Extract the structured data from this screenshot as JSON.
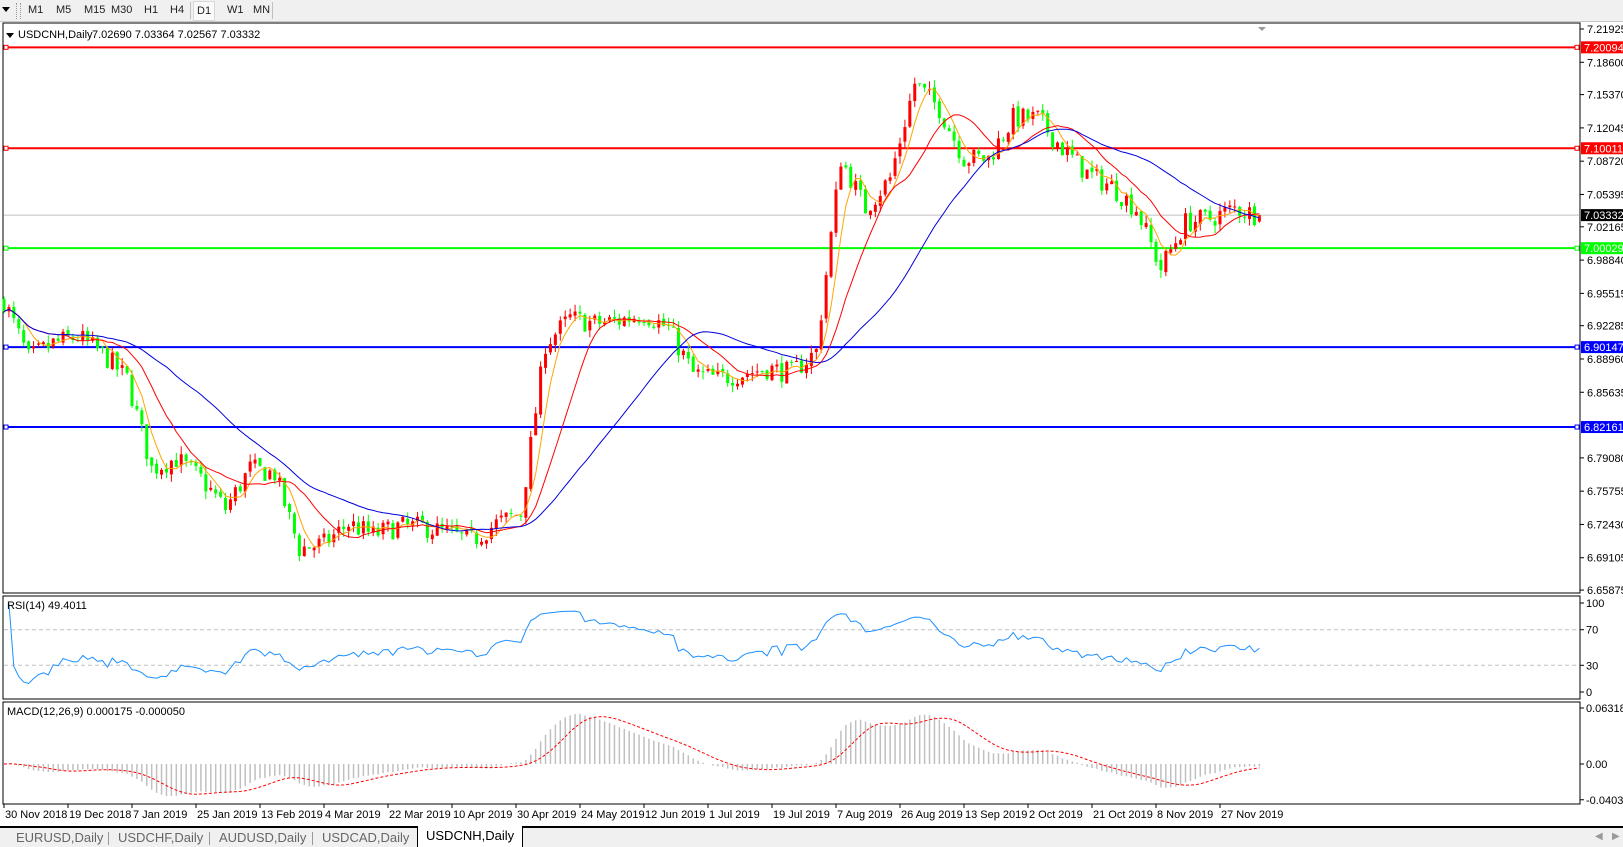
{
  "toolbar": {
    "timeframes": [
      "M1",
      "M5",
      "M15",
      "M30",
      "H1",
      "H4",
      "D1",
      "W1",
      "MN"
    ],
    "active": "D1"
  },
  "chart": {
    "symbol_label": "USDCNH,Daily",
    "ohlc_label": "7.02690 7.03364 7.02567 7.03332",
    "price_ticks": [
      "7.21925",
      "7.18600",
      "7.15370",
      "7.12045",
      "7.08720",
      "7.05395",
      "7.02165",
      "6.98840",
      "6.95515",
      "6.92285",
      "6.88960",
      "6.85635",
      "6.79080",
      "6.75755",
      "6.72430",
      "6.69105",
      "6.65875"
    ],
    "hlines": [
      {
        "price": "7.20094",
        "color": "#ff0000"
      },
      {
        "price": "7.10011",
        "color": "#ff0000"
      },
      {
        "price": "7.00029",
        "color": "#00ff00"
      },
      {
        "price": "6.90147",
        "color": "#0000ff"
      },
      {
        "price": "6.82161",
        "color": "#0000ff"
      }
    ],
    "last_price": "7.03332",
    "date_ticks": [
      "30 Nov 2018",
      "19 Dec 2018",
      "7 Jan 2019",
      "25 Jan 2019",
      "13 Feb 2019",
      "4 Mar 2019",
      "22 Mar 2019",
      "10 Apr 2019",
      "30 Apr 2019",
      "24 May 2019",
      "12 Jun 2019",
      "1 Jul 2019",
      "19 Jul 2019",
      "7 Aug 2019",
      "26 Aug 2019",
      "13 Sep 2019",
      "2 Oct 2019",
      "21 Oct 2019",
      "8 Nov 2019",
      "27 Nov 2019"
    ]
  },
  "rsi": {
    "label": "RSI(14) 49.4011",
    "ticks": [
      "100",
      "70",
      "30",
      "0"
    ],
    "levels": [
      70,
      30
    ],
    "color": "#1e90ff"
  },
  "macd": {
    "label": "MACD(12,26,9) 0.000175 -0.000050",
    "ticks": [
      "0.063184",
      "0.00",
      "-0.040355"
    ],
    "histogram_color": "#c0c0c0",
    "signal_color": "#ff0000"
  },
  "chart_data": {
    "type": "candlestick",
    "symbol": "USDCNH",
    "timeframe": "Daily",
    "up_color": "#ff0000",
    "down_color": "#00ff00",
    "ma_colors": [
      "#ffa500",
      "#ff0000",
      "#0000dd"
    ],
    "ylim": [
      6.65875,
      7.21925
    ],
    "last_bar": {
      "open": 7.0269,
      "high": 7.03364,
      "low": 7.02567,
      "close": 7.03332
    },
    "weekly_closes": [
      6.948,
      6.89,
      6.905,
      6.912,
      6.895,
      6.87,
      6.78,
      6.79,
      6.77,
      6.74,
      6.78,
      6.775,
      6.7,
      6.705,
      6.725,
      6.714,
      6.722,
      6.722,
      6.716,
      6.708,
      6.725,
      6.736,
      6.905,
      6.93,
      6.925,
      6.928,
      6.935,
      6.92,
      6.875,
      6.87,
      6.875,
      6.88,
      6.876,
      6.897,
      7.09,
      7.04,
      7.07,
      7.165,
      7.14,
      7.09,
      7.09,
      7.13,
      7.13,
      7.1,
      7.075,
      7.062,
      7.04,
      6.98,
      7.026,
      7.03,
      7.04,
      7.033
    ]
  },
  "tabs": [
    "EURUSD,Daily",
    "USDCHF,Daily",
    "AUDUSD,Daily",
    "USDCAD,Daily",
    "USDCNH,Daily"
  ],
  "active_tab": "USDCNH,Daily"
}
